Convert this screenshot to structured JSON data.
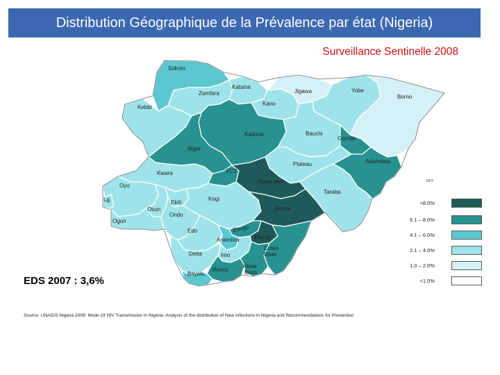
{
  "header": {
    "title": "Distribution Géographique de la Prévalence par état (Nigeria)",
    "subtitle": "Surveillance Sentinelle 2008"
  },
  "colors": {
    "header_bg": "#3b68b0",
    "subtitle": "#d01010",
    "class_1": "#ffffff",
    "class_2": "#d6f1f5",
    "class_3": "#9fe3ea",
    "class_4": "#5bc8cf",
    "class_5": "#27928f",
    "class_6": "#1d5a59",
    "state_border": "#ffffff",
    "outline": "#6a6a6a"
  },
  "map": {
    "states": [
      {
        "name": "Sokoto",
        "class": "4.1 – 6.0%"
      },
      {
        "name": "Zamfara",
        "class": "2.1 – 4.0%"
      },
      {
        "name": "Katsina",
        "class": "2.1 – 4.0%"
      },
      {
        "name": "Jigawa",
        "class": "1.0 – 2.0%"
      },
      {
        "name": "Yobe",
        "class": "2.1 – 4.0%"
      },
      {
        "name": "Borno",
        "class": "1.0 – 2.0%"
      },
      {
        "name": "Kebbi",
        "class": "2.1 – 4.0%"
      },
      {
        "name": "Kano",
        "class": "2.1 – 4.0%"
      },
      {
        "name": "Kaduna",
        "class": "6.1 – 8.0%"
      },
      {
        "name": "Bauchi",
        "class": "2.1 – 4.0%"
      },
      {
        "name": "Gombe",
        "class": "6.1 – 8.0%"
      },
      {
        "name": "Niger",
        "class": "6.1 – 8.0%"
      },
      {
        "name": "Plateau",
        "class": "2.1 – 4.0%"
      },
      {
        "name": "Adamawa",
        "class": "6.1 – 8.0%"
      },
      {
        "name": "Kwara",
        "class": "2.1 – 4.0%"
      },
      {
        "name": "FCT",
        "class": "6.1 – 8.0%"
      },
      {
        "name": "Nasarawa",
        "class": ">8.0%"
      },
      {
        "name": "Taraba",
        "class": "2.1 – 4.0%"
      },
      {
        "name": "Oyo",
        "class": "2.1 – 4.0%"
      },
      {
        "name": "Ekiti",
        "class": "2.1 – 4.0%"
      },
      {
        "name": "Kogi",
        "class": "2.1 – 4.0%"
      },
      {
        "name": "Benue",
        "class": ">8.0%"
      },
      {
        "name": "Osun",
        "class": "2.1 – 4.0%"
      },
      {
        "name": "Ondo",
        "class": "2.1 – 4.0%"
      },
      {
        "name": "Ogun",
        "class": "2.1 – 4.0%"
      },
      {
        "name": "Lagos",
        "class": "2.1 – 4.0%"
      },
      {
        "name": "Edo",
        "class": "2.1 – 4.0%"
      },
      {
        "name": "Enugu",
        "class": "6.1 – 8.0%"
      },
      {
        "name": "Ebonyi",
        "class": ">8.0%"
      },
      {
        "name": "Anambra",
        "class": "4.1 – 6.0%"
      },
      {
        "name": "Cross River",
        "class": "6.1 – 8.0%"
      },
      {
        "name": "Delta",
        "class": "2.1 – 4.0%"
      },
      {
        "name": "Imo",
        "class": "2.1 – 4.0%"
      },
      {
        "name": "Rivers",
        "class": "6.1 – 8.0%"
      },
      {
        "name": "Akwa Ibom",
        "class": "6.1 – 8.0%"
      },
      {
        "name": "Bayels.",
        "class": "4.1 – 6.0%"
      }
    ]
  },
  "labels": {
    "sokoto": "Sokoto",
    "zamfara": "Zamfara",
    "katsina": "Katsina",
    "jigawa": "Jigawa",
    "yobe": "Yobe",
    "borno": "Borno",
    "kebbi": "Kebbi",
    "kano": "Kano",
    "kaduna": "Kaduna",
    "bauchi": "Bauchi",
    "gombe": "Gombe",
    "niger": "Niger",
    "plateau": "Plateau",
    "adamawa": "Adamawa",
    "kwara": "Kwara",
    "fct": "FCT",
    "nasarawa": "Nasarawa",
    "taraba": "Taraba",
    "oyo": "Oyo",
    "ekiti": "Ekiti",
    "kogi": "Kogi",
    "benue": "Benue",
    "osun": "Osun",
    "ondo": "Ondo",
    "ogun": "Ogun",
    "lagos": "Lg",
    "edo": "Edo",
    "enugu": "Enugu",
    "ebonyi": "Ebonyi",
    "anambra": "Anambra",
    "cross_river_1": "Cross",
    "cross_river_2": "River",
    "delta": "Delta",
    "imo": "Imo",
    "rivers": "Rivers",
    "akwa_ibom_1": "Akwa",
    "akwa_ibom_2": "Ibom",
    "bayelsa": "Bayels."
  },
  "legend": {
    "title": "KEY",
    "items": [
      {
        "label": ">8.0%",
        "color": "#1d5a59"
      },
      {
        "label": "6.1 – 8.0%",
        "color": "#27928f"
      },
      {
        "label": "4.1 – 6.0%",
        "color": "#5bc8cf"
      },
      {
        "label": "2.1 – 4.0%",
        "color": "#9fe3ea"
      },
      {
        "label": "1.0 – 2.0%",
        "color": "#d6f1f5"
      },
      {
        "label": "<1.0%",
        "color": "#ffffff"
      }
    ]
  },
  "annotation": {
    "eds": "EDS 2007 : 3,6%"
  },
  "footer": {
    "source": "Source: UNAIDS Nigeria 2009:  Mode Of HIV Transmission  in Nigeria: Analysis of the distribution of New Infections in Nigeria and Recommendations for Prevention"
  }
}
